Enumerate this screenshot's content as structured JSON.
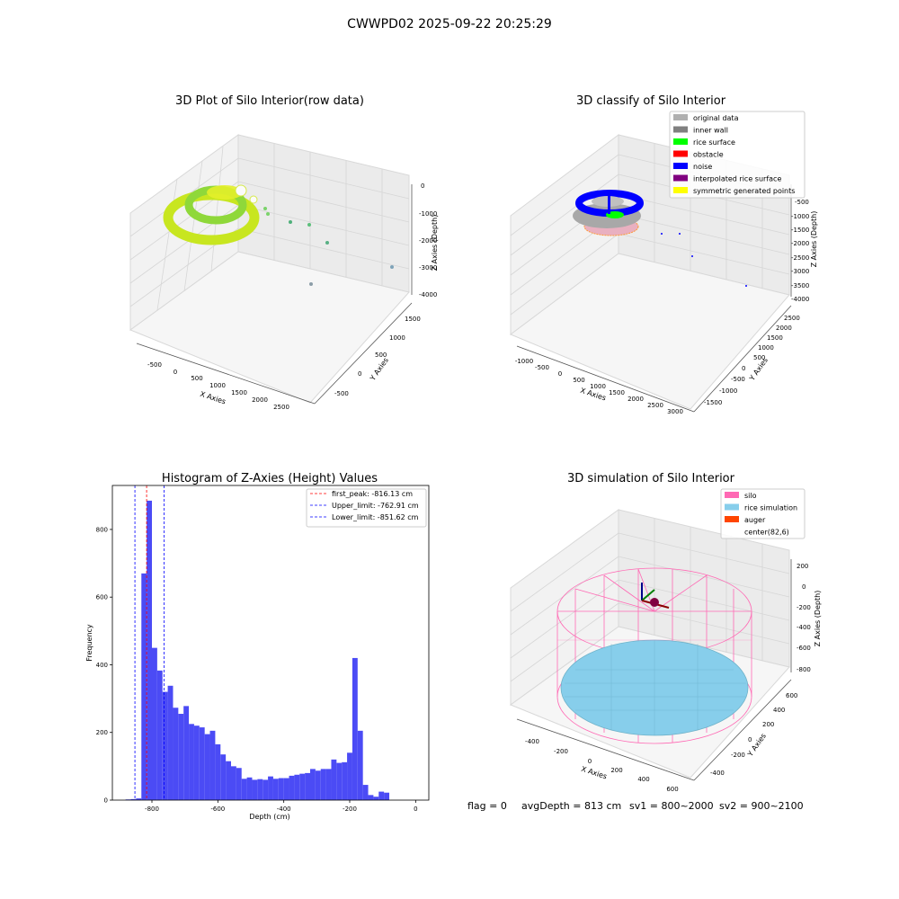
{
  "figure": {
    "suptitle": "CWWPD02 2025-09-22 20:25:29",
    "footer": {
      "flag": "flag = 0",
      "avg_depth": "avgDepth = 813 cm",
      "sv1": "sv1 = 800~2000",
      "sv2": "sv2 = 900~2100"
    }
  },
  "panels": {
    "raw": {
      "title": "3D Plot of Silo Interior(row data)",
      "xlabel": "X Axies",
      "ylabel": "Y Axies",
      "zlabel": "Z Axies (Depth)",
      "xticks": [
        "-500",
        "0",
        "500",
        "1000",
        "1500",
        "2000",
        "2500"
      ],
      "yticks": [
        "-500",
        "0",
        "500",
        "1000",
        "1500"
      ],
      "zticks": [
        "0",
        "-1000",
        "-2000",
        "-3000",
        "-4000"
      ]
    },
    "classify": {
      "title": "3D classify of Silo Interior",
      "xlabel": "X Axies",
      "ylabel": "Y Axies",
      "zlabel": "Z Axies (Depth)",
      "xticks": [
        "-1000",
        "-500",
        "0",
        "500",
        "1000",
        "1500",
        "2000",
        "2500",
        "3000"
      ],
      "yticks": [
        "-1500",
        "-1000",
        "-500",
        "0",
        "500",
        "1000",
        "1500",
        "2000",
        "2500"
      ],
      "zticks": [
        "-500",
        "-1000",
        "-1500",
        "-2000",
        "-2500",
        "-3000",
        "-3500",
        "-4000"
      ],
      "legend": [
        {
          "label": "original data",
          "color": "#b0b0b0"
        },
        {
          "label": "inner wall",
          "color": "#808080"
        },
        {
          "label": "rice surface",
          "color": "#00ff00"
        },
        {
          "label": "obstacle",
          "color": "#ff0000"
        },
        {
          "label": "noise",
          "color": "#0000ff"
        },
        {
          "label": "interpolated rice surface",
          "color": "#800080"
        },
        {
          "label": "symmetric generated points",
          "color": "#ffff00"
        }
      ]
    },
    "simulation": {
      "title": "3D simulation of Silo Interior",
      "xlabel": "X Axies",
      "ylabel": "Y Axies",
      "zlabel": "Z Axies (Depth)",
      "xticks": [
        "-400",
        "-200",
        "0",
        "200",
        "400",
        "600"
      ],
      "yticks": [
        "-400",
        "-200",
        "0",
        "200",
        "400",
        "600"
      ],
      "zticks": [
        "200",
        "0",
        "-200",
        "-400",
        "-600",
        "-800"
      ],
      "legend": [
        {
          "label": "silo",
          "color": "#ff69b4"
        },
        {
          "label": "rice simulation",
          "color": "#87ceeb"
        },
        {
          "label": "auger",
          "color": "#ff4500"
        },
        {
          "label": "center(82,6)",
          "color": ""
        }
      ]
    }
  },
  "chart_data": {
    "type": "bar",
    "title": "Histogram of Z-Axies (Height) Values",
    "xlabel": "Depth (cm)",
    "ylabel": "Frequency",
    "xlim": [
      -920,
      40
    ],
    "ylim": [
      0,
      930
    ],
    "xticks": [
      -800,
      -600,
      -400,
      -200,
      0
    ],
    "yticks": [
      0,
      200,
      400,
      600,
      800
    ],
    "bin_width": 16,
    "bin_starts": [
      -880,
      -864,
      -848,
      -832,
      -816,
      -800,
      -784,
      -768,
      -752,
      -736,
      -720,
      -704,
      -688,
      -672,
      -656,
      -640,
      -624,
      -608,
      -592,
      -576,
      -560,
      -544,
      -528,
      -512,
      -496,
      -480,
      -464,
      -448,
      -432,
      -416,
      -400,
      -384,
      -368,
      -352,
      -336,
      -320,
      -304,
      -288,
      -272,
      -256,
      -240,
      -224,
      -208,
      -192,
      -176,
      -160,
      -144,
      -128,
      -112,
      -96,
      -80,
      -64,
      -48,
      -32,
      -16
    ],
    "values": [
      2,
      3,
      5,
      670,
      885,
      450,
      383,
      320,
      338,
      273,
      255,
      278,
      225,
      220,
      215,
      195,
      205,
      165,
      135,
      115,
      100,
      95,
      63,
      67,
      60,
      62,
      60,
      70,
      63,
      65,
      65,
      72,
      75,
      78,
      80,
      92,
      87,
      92,
      92,
      120,
      110,
      112,
      140,
      420,
      205,
      45,
      15,
      10,
      25,
      22,
      0,
      0,
      0,
      0,
      0
    ],
    "vlines": [
      {
        "label": "first_peak: -816.13 cm",
        "x": -816.13,
        "color": "#ff0000"
      },
      {
        "label": "Upper_limit: -762.91 cm",
        "x": -762.91,
        "color": "#0000ff"
      },
      {
        "label": "Lower_limit: -851.62 cm",
        "x": -851.62,
        "color": "#0000ff"
      }
    ],
    "bar_color": "#4b4bf5",
    "legend_position": "upper right"
  }
}
